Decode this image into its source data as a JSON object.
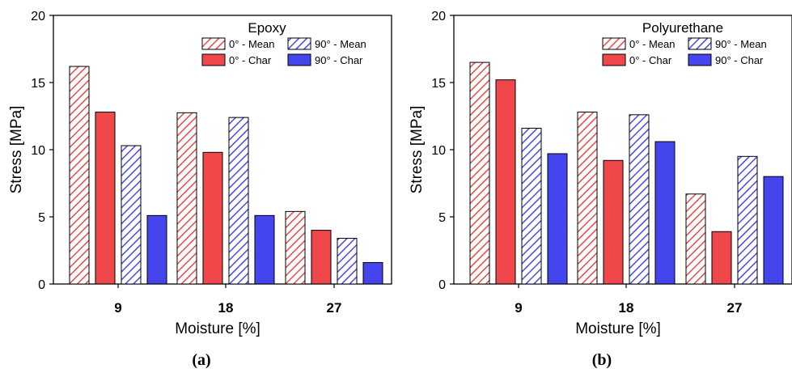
{
  "chart_data": [
    {
      "type": "bar",
      "title": "Epoxy",
      "caption": "(a)",
      "xlabel": "Moisture [%]",
      "ylabel": "Stress  [MPa]",
      "ylim": [
        0,
        20
      ],
      "yticks": [
        "0",
        "5",
        "10",
        "15",
        "20"
      ],
      "categories": [
        "9",
        "18",
        "27"
      ],
      "legend": "top-right",
      "series": [
        {
          "name": "0° - Mean",
          "color": "#e84a4a",
          "pattern": "hatch",
          "values": [
            16.2,
            12.75,
            5.4
          ]
        },
        {
          "name": "0° - Char",
          "color": "#f0474a",
          "pattern": "solid",
          "values": [
            12.8,
            9.8,
            4.0
          ]
        },
        {
          "name": "90° - Mean",
          "color": "#4a4ae8",
          "pattern": "hatch",
          "values": [
            10.3,
            12.4,
            3.4
          ]
        },
        {
          "name": "90° - Char",
          "color": "#4545ee",
          "pattern": "solid",
          "values": [
            5.1,
            5.1,
            1.6
          ]
        }
      ]
    },
    {
      "type": "bar",
      "title": "Polyurethane",
      "caption": "(b)",
      "xlabel": "Moisture [%]",
      "ylabel": "Stress  [MPa]",
      "ylim": [
        0,
        20
      ],
      "yticks": [
        "0",
        "5",
        "10",
        "15",
        "20"
      ],
      "categories": [
        "9",
        "18",
        "27"
      ],
      "legend": "top-right",
      "series": [
        {
          "name": "0° - Mean",
          "color": "#e84a4a",
          "pattern": "hatch",
          "values": [
            16.5,
            12.8,
            6.7
          ]
        },
        {
          "name": "0° - Char",
          "color": "#f0474a",
          "pattern": "solid",
          "values": [
            15.2,
            9.2,
            3.9
          ]
        },
        {
          "name": "90° - Mean",
          "color": "#4a4ae8",
          "pattern": "hatch",
          "values": [
            11.6,
            12.6,
            9.5
          ]
        },
        {
          "name": "90° - Char",
          "color": "#4545ee",
          "pattern": "solid",
          "values": [
            9.7,
            10.6,
            8.0
          ]
        }
      ]
    }
  ]
}
